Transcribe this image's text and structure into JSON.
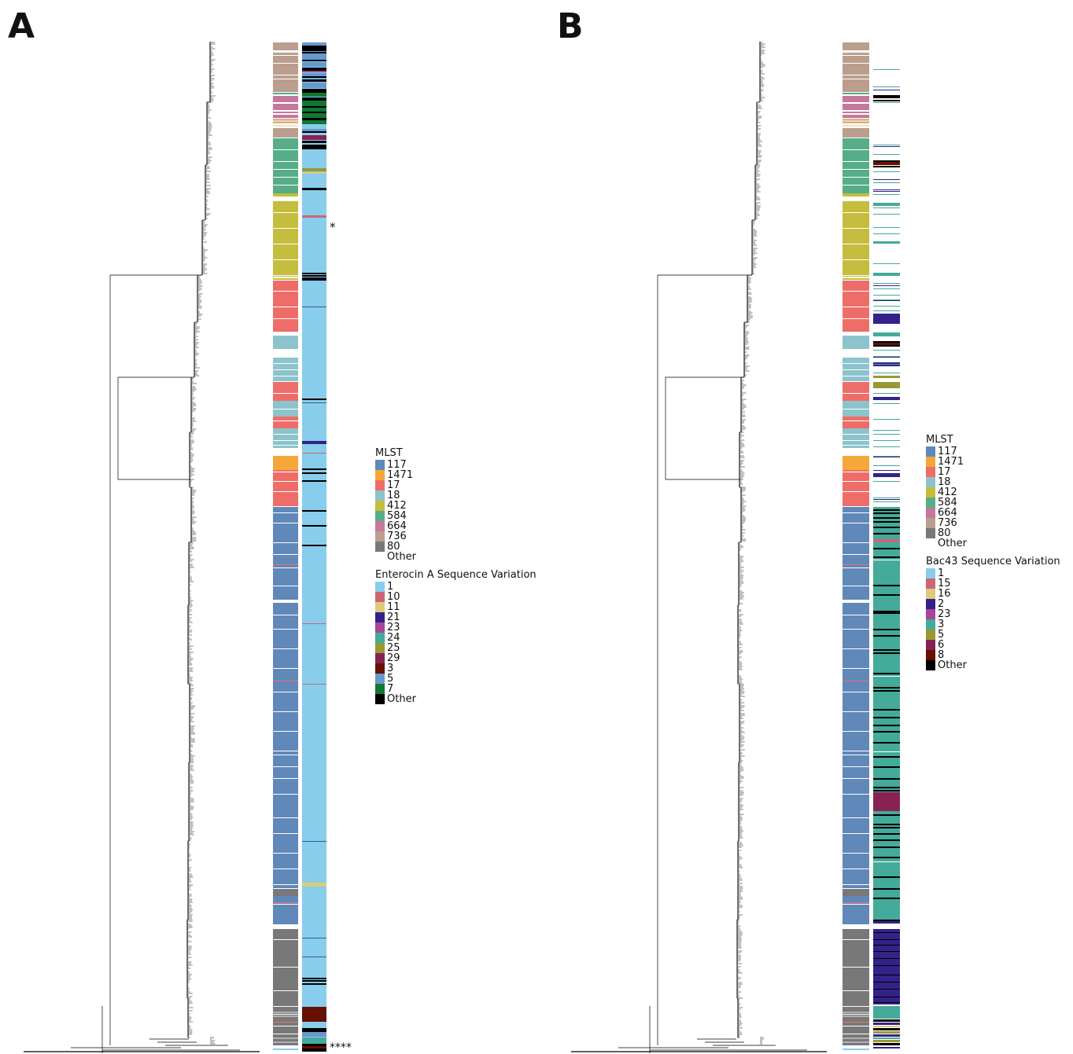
{
  "panels": {
    "a": {
      "letter": "A",
      "legend_mlst_title": "MLST",
      "legend_seq_title": "Enterocin A Sequence Variation",
      "marker_top": "*",
      "marker_bottom": "****"
    },
    "b": {
      "letter": "B",
      "legend_mlst_title": "MLST",
      "legend_seq_title": "Bac43 Sequence Variation"
    }
  },
  "mlst_legend": [
    {
      "label": "117",
      "color": "#6088b8"
    },
    {
      "label": "1471",
      "color": "#f5a83a"
    },
    {
      "label": "17",
      "color": "#ee6d68"
    },
    {
      "label": "18",
      "color": "#8dc3cc"
    },
    {
      "label": "412",
      "color": "#c4bd3d"
    },
    {
      "label": "584",
      "color": "#56ad88"
    },
    {
      "label": "664",
      "color": "#c4789b"
    },
    {
      "label": "736",
      "color": "#bb9e8e"
    },
    {
      "label": "80",
      "color": "#787878"
    },
    {
      "label": "Other",
      "color": "#ffffff"
    }
  ],
  "enterocin_legend": [
    {
      "label": "1",
      "color": "#88cdec"
    },
    {
      "label": "10",
      "color": "#cc6677"
    },
    {
      "label": "11",
      "color": "#ddcc77"
    },
    {
      "label": "21",
      "color": "#332288"
    },
    {
      "label": "23",
      "color": "#aa4499"
    },
    {
      "label": "24",
      "color": "#44aa99"
    },
    {
      "label": "25",
      "color": "#999933"
    },
    {
      "label": "29",
      "color": "#882255"
    },
    {
      "label": "3",
      "color": "#661100"
    },
    {
      "label": "5",
      "color": "#6699cc"
    },
    {
      "label": "7",
      "color": "#117733"
    },
    {
      "label": "Other",
      "color": "#000000"
    }
  ],
  "bac43_legend": [
    {
      "label": "1",
      "color": "#88ccee"
    },
    {
      "label": "15",
      "color": "#cc6677"
    },
    {
      "label": "16",
      "color": "#ddcc77"
    },
    {
      "label": "2",
      "color": "#332288"
    },
    {
      "label": "23",
      "color": "#aa4499"
    },
    {
      "label": "3",
      "color": "#44aa99"
    },
    {
      "label": "5",
      "color": "#999933"
    },
    {
      "label": "6",
      "color": "#882255"
    },
    {
      "label": "8",
      "color": "#661100"
    },
    {
      "label": "Other",
      "color": "#000000"
    }
  ]
}
